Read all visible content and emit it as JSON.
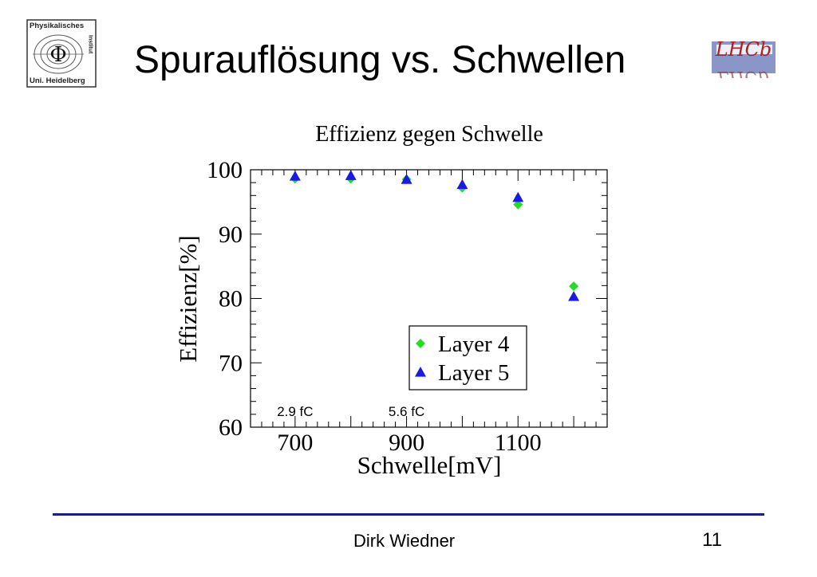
{
  "slide": {
    "title": "Spurauflösung vs. Schwellen",
    "author": "Dirk Wiedner",
    "page_number": "11"
  },
  "logos": {
    "left": {
      "icon": "institute-seal-icon",
      "line1": "Physikalisches",
      "line2": "Uni. Heidelberg",
      "side": "Institut",
      "symbol": "Φ"
    },
    "right": {
      "icon": "lhcb-logo-icon",
      "text": "LHCb"
    }
  },
  "chart_data": {
    "type": "scatter",
    "title": "Effizienz gegen Schwelle",
    "xlabel": "Schwelle[mV]",
    "ylabel": "Effizienz[%]",
    "xlim": [
      620,
      1260
    ],
    "ylim": [
      60,
      100
    ],
    "xticks": [
      700,
      900,
      1100
    ],
    "yticks": [
      60,
      70,
      80,
      90,
      100
    ],
    "grid": false,
    "legend_position": "lower-right",
    "series": [
      {
        "name": "Layer 4",
        "marker": "diamond",
        "color": "#22dd22",
        "x": [
          700,
          800,
          900,
          1000,
          1100,
          1200
        ],
        "y": [
          98.6,
          98.6,
          98.5,
          97.2,
          94.6,
          81.9
        ]
      },
      {
        "name": "Layer 5",
        "marker": "triangle",
        "color": "#1a1ae6",
        "x": [
          700,
          800,
          900,
          1000,
          1100,
          1200
        ],
        "y": [
          99.0,
          99.1,
          98.5,
          97.7,
          95.7,
          80.3
        ]
      }
    ],
    "annotations": [
      {
        "text": "2.9 fC",
        "x": 700
      },
      {
        "text": "5.6 fC",
        "x": 900
      }
    ]
  },
  "colors": {
    "rule": "#1b1b8f",
    "layer4": "#22dd22",
    "layer5": "#1a1ae6"
  }
}
